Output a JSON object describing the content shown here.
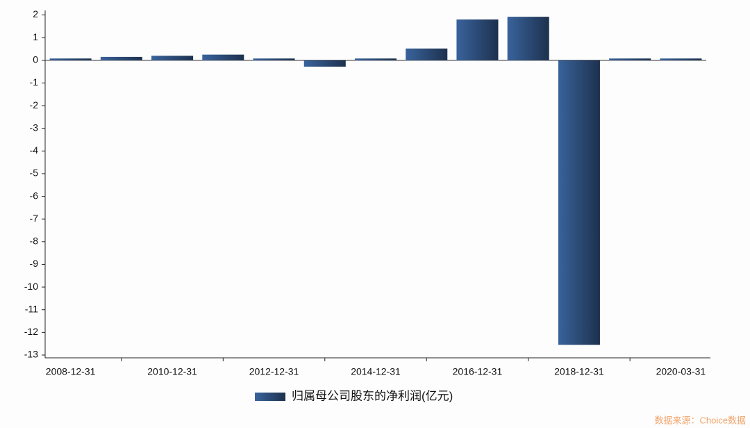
{
  "chart_data": {
    "type": "bar",
    "categories": [
      "2008-12-31",
      null,
      "2010-12-31",
      null,
      "2012-12-31",
      null,
      "2014-12-31",
      null,
      "2016-12-31",
      null,
      "2018-12-31",
      null,
      "2020-03-31"
    ],
    "series": [
      {
        "name": "归属母公司股东的净利润(亿元)",
        "color": "#2c4c78",
        "values": [
          0.08,
          0.15,
          0.2,
          0.25,
          0.08,
          -0.28,
          0.08,
          0.52,
          1.8,
          1.92,
          -12.55,
          0.08,
          0.08
        ]
      }
    ],
    "ylim": [
      -13,
      2.2
    ],
    "yticks": [
      -13,
      -12,
      -11,
      -10,
      -9,
      -8,
      -7,
      -6,
      -5,
      -4,
      -3,
      -2,
      -1,
      0,
      1,
      2
    ],
    "grid": false,
    "legend": "bottom",
    "source": "数据来源：Choice数据"
  }
}
